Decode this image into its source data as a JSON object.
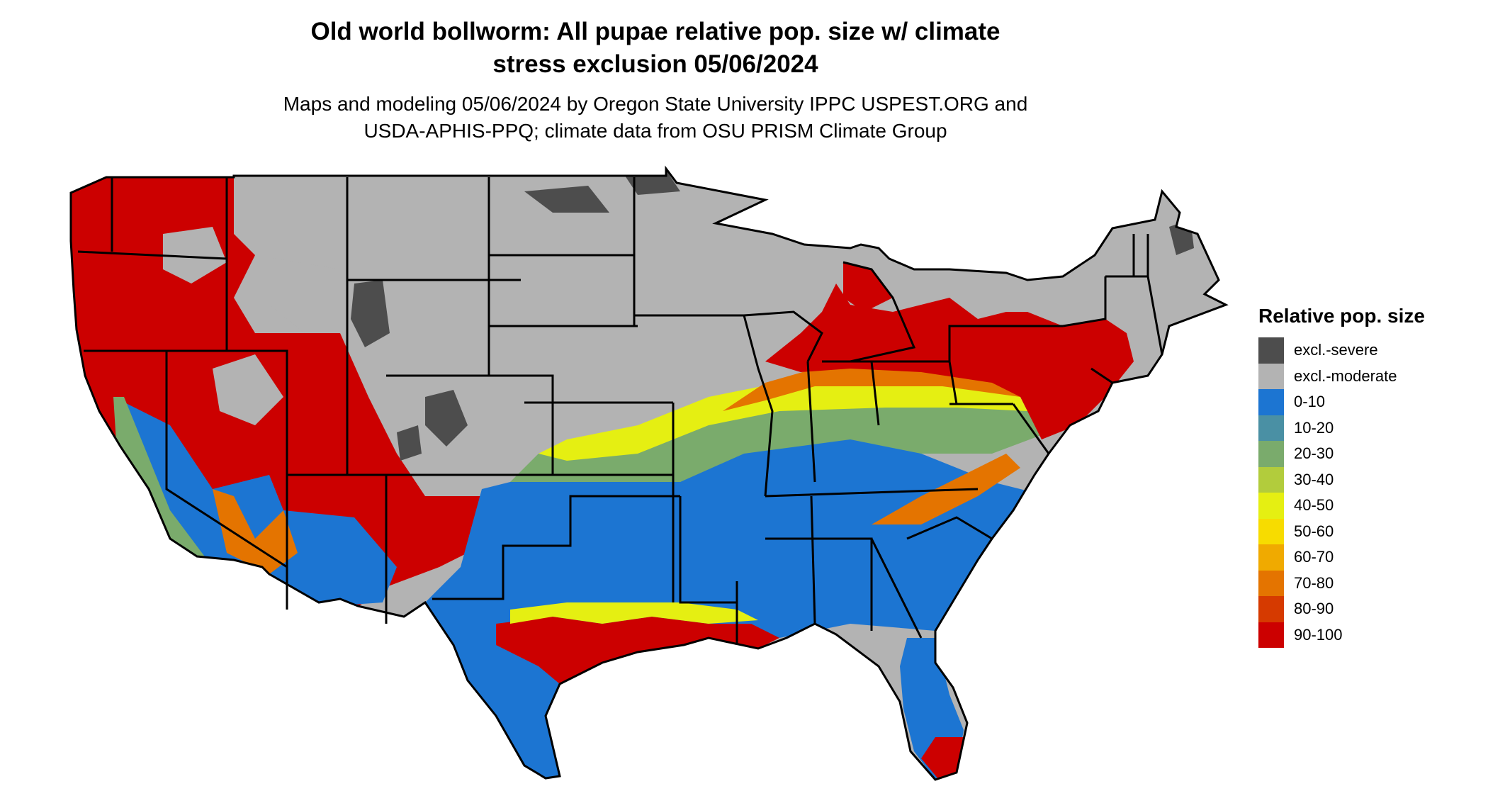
{
  "title_lines": [
    "Old world bollworm: All pupae relative pop. size w/ climate",
    "stress exclusion 05/06/2024"
  ],
  "subtitle_lines": [
    "Maps and modeling 05/06/2024 by Oregon State University IPPC USPEST.ORG and",
    "USDA-APHIS-PPQ; climate data from OSU PRISM Climate Group"
  ],
  "legend": {
    "title": "Relative pop. size",
    "items": [
      {
        "label": "excl.-severe",
        "color": "#4d4d4d"
      },
      {
        "label": "excl.-moderate",
        "color": "#b3b3b3"
      },
      {
        "label": "0-10",
        "color": "#1c75d2"
      },
      {
        "label": "10-20",
        "color": "#4a90a4"
      },
      {
        "label": "20-30",
        "color": "#7aab6c"
      },
      {
        "label": "30-40",
        "color": "#b2cc3c"
      },
      {
        "label": "40-50",
        "color": "#e5ef12"
      },
      {
        "label": "50-60",
        "color": "#f7dc00"
      },
      {
        "label": "60-70",
        "color": "#f0aa00"
      },
      {
        "label": "70-80",
        "color": "#e47400"
      },
      {
        "label": "80-90",
        "color": "#d63a00"
      },
      {
        "label": "90-100",
        "color": "#cc0000"
      }
    ]
  }
}
